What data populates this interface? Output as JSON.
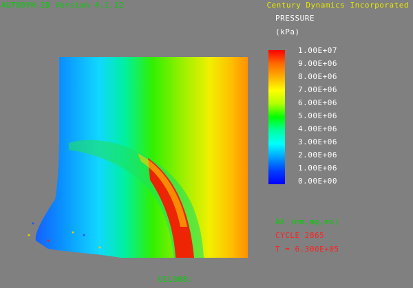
{
  "header": {
    "app_title": "AUTODYN-2D Version 4.1.12",
    "vendor": "Century Dynamics Incorporated"
  },
  "legend": {
    "title": "PRESSURE",
    "unit": "(kPa)",
    "labels": [
      "1.00E+07",
      "9.00E+06",
      "8.00E+06",
      "7.00E+06",
      "6.00E+06",
      "5.00E+06",
      "4.00E+06",
      "3.00E+06",
      "2.00E+06",
      "1.00E+06",
      "0.00E+00"
    ],
    "color_max": "#ff0000",
    "color_min": "#0000ff"
  },
  "info": {
    "axes": "AX (mm,mg,ms)",
    "cycle": "CYCLE 2865",
    "time": "T = 6.300E+05"
  },
  "footer": {
    "name": "UCL008:"
  },
  "colors": {
    "background": "#808080",
    "header_green": "#00d000",
    "header_yellow": "#e8e800",
    "info_red": "#ff2020"
  }
}
